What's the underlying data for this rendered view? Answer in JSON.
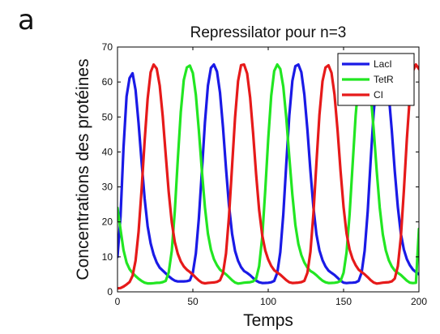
{
  "panel_label": "a",
  "chart_data": {
    "type": "line",
    "title": "Repressilator pour n=3",
    "xlabel": "Temps",
    "ylabel": "Concentrations des protéines",
    "xlim": [
      0,
      200
    ],
    "ylim": [
      0,
      70
    ],
    "xticks": [
      0,
      50,
      100,
      150,
      200
    ],
    "yticks": [
      0,
      10,
      20,
      30,
      40,
      50,
      60,
      70
    ],
    "grid": false,
    "legend_position": "top-right",
    "series": [
      {
        "name": "LacI",
        "color": "#1a1ae6",
        "x": [
          0,
          2,
          4,
          6,
          8,
          10,
          12,
          14,
          16,
          18,
          20,
          22,
          24,
          26,
          28,
          30,
          32,
          34,
          36,
          38,
          40,
          42,
          44,
          46,
          48,
          50,
          52,
          54,
          56,
          58,
          60,
          62,
          64,
          66,
          68,
          70,
          72,
          74,
          76,
          78,
          80,
          82,
          84,
          86,
          88,
          90,
          92,
          94,
          96,
          98,
          100,
          102,
          104,
          106,
          108,
          110,
          112,
          114,
          116,
          118,
          120,
          122,
          124,
          126,
          128,
          130,
          132,
          134,
          136,
          138,
          140,
          142,
          144,
          146,
          148,
          150,
          152,
          154,
          156,
          158,
          160,
          162,
          164,
          166,
          168,
          170,
          172,
          174,
          176,
          178,
          180,
          182,
          184,
          186,
          188,
          190,
          192,
          194,
          196,
          198,
          200
        ],
        "y": [
          10.0,
          21.36,
          41.13,
          55.89,
          61.13,
          62.5,
          57.71,
          48.23,
          36.97,
          26.65,
          18.76,
          13.85,
          10.67,
          8.38,
          6.91,
          6.1,
          5.29,
          4.48,
          3.73,
          3.19,
          2.97,
          2.98,
          3.0,
          3.05,
          3.29,
          5.5,
          10.98,
          21.0,
          34.7,
          48.42,
          58.95,
          64.02,
          65.0,
          62.97,
          56.97,
          47.06,
          35.35,
          24.71,
          16.61,
          11.68,
          8.87,
          7.08,
          5.95,
          5.4,
          4.75,
          3.94,
          3.2,
          2.73,
          2.52,
          2.56,
          2.6,
          2.74,
          3.14,
          5.45,
          11.32,
          22.11,
          36.52,
          50.38,
          60.3,
          64.5,
          65.0,
          62.8,
          56.41,
          46.29,
          34.57,
          24.13,
          16.45,
          11.86,
          9.06,
          7.25,
          6.07,
          5.43,
          4.81,
          4.01,
          3.2,
          2.63,
          2.51,
          2.59,
          2.61,
          2.72,
          3.12,
          5.53,
          11.72,
          23.0,
          37.79,
          51.4,
          60.56,
          64.16,
          64.7,
          62.56,
          56.33,
          46.15,
          34.47,
          24.17,
          16.63,
          12.1,
          9.34,
          7.61,
          6.34,
          5.66,
          5.0
        ]
      },
      {
        "name": "TetR",
        "color": "#22e622",
        "x": [
          0,
          2,
          4,
          6,
          8,
          10,
          12,
          14,
          16,
          18,
          20,
          22,
          24,
          26,
          28,
          30,
          32,
          34,
          36,
          38,
          40,
          42,
          44,
          46,
          48,
          50,
          52,
          54,
          56,
          58,
          60,
          62,
          64,
          66,
          68,
          70,
          72,
          74,
          76,
          78,
          80,
          82,
          84,
          86,
          88,
          90,
          92,
          94,
          96,
          98,
          100,
          102,
          104,
          106,
          108,
          110,
          112,
          114,
          116,
          118,
          120,
          122,
          124,
          126,
          128,
          130,
          132,
          134,
          136,
          138,
          140,
          142,
          144,
          146,
          148,
          150,
          152,
          154,
          156,
          158,
          160,
          162,
          164,
          166,
          168,
          170,
          172,
          174,
          176,
          178,
          180,
          182,
          184,
          186,
          188,
          190,
          192,
          194,
          196,
          198,
          200
        ],
        "y": [
          24.0,
          17.88,
          11.95,
          8.37,
          6.48,
          5.37,
          4.52,
          3.76,
          3.1,
          2.62,
          2.4,
          2.41,
          2.49,
          2.57,
          2.6,
          2.78,
          3.14,
          5.53,
          11.72,
          23.0,
          37.79,
          51.4,
          60.56,
          64.16,
          64.7,
          62.56,
          56.33,
          46.15,
          34.47,
          24.17,
          16.63,
          12.1,
          9.34,
          7.61,
          6.34,
          5.66,
          5.0,
          4.2,
          3.34,
          2.66,
          2.37,
          2.47,
          2.63,
          2.7,
          2.76,
          3.0,
          3.81,
          7.35,
          15.65,
          28.86,
          43.67,
          56.05,
          63.14,
          65.0,
          63.73,
          58.68,
          49.71,
          38.57,
          27.79,
          19.12,
          13.72,
          10.49,
          8.38,
          6.91,
          5.95,
          5.45,
          4.75,
          3.94,
          3.2,
          2.73,
          2.52,
          2.56,
          2.6,
          2.74,
          3.14,
          5.45,
          11.32,
          22.11,
          36.52,
          50.38,
          60.3,
          64.5,
          65.0,
          62.8,
          56.41,
          46.29,
          34.57,
          24.13,
          16.45,
          11.86,
          9.06,
          7.25,
          6.07,
          5.43,
          4.81,
          4.01,
          3.2,
          2.63,
          2.51,
          2.59,
          18.0
        ]
      },
      {
        "name": "CI",
        "color": "#e61a1a",
        "x": [
          0,
          2,
          4,
          6,
          8,
          10,
          12,
          14,
          16,
          18,
          20,
          22,
          24,
          26,
          28,
          30,
          32,
          34,
          36,
          38,
          40,
          42,
          44,
          46,
          48,
          50,
          52,
          54,
          56,
          58,
          60,
          62,
          64,
          66,
          68,
          70,
          72,
          74,
          76,
          78,
          80,
          82,
          84,
          86,
          88,
          90,
          92,
          94,
          96,
          98,
          100,
          102,
          104,
          106,
          108,
          110,
          112,
          114,
          116,
          118,
          120,
          122,
          124,
          126,
          128,
          130,
          132,
          134,
          136,
          138,
          140,
          142,
          144,
          146,
          148,
          150,
          152,
          154,
          156,
          158,
          160,
          162,
          164,
          166,
          168,
          170,
          172,
          174,
          176,
          178,
          180,
          182,
          184,
          186,
          188,
          190,
          192,
          194,
          196,
          198,
          200
        ],
        "y": [
          1.0,
          1.1,
          1.5,
          2.1,
          2.8,
          4.6,
          8.9,
          17.14,
          29.44,
          43.17,
          55.22,
          62.79,
          65.0,
          63.83,
          58.99,
          50.25,
          39.27,
          28.56,
          19.84,
          14.25,
          10.89,
          8.72,
          7.28,
          6.32,
          5.67,
          4.91,
          4.06,
          3.24,
          2.63,
          2.43,
          2.54,
          2.61,
          2.69,
          2.85,
          3.32,
          5.34,
          10.95,
          21.59,
          35.87,
          49.86,
          60.26,
          64.81,
          65.0,
          62.44,
          55.57,
          45.23,
          33.57,
          23.41,
          16.2,
          11.9,
          9.24,
          7.42,
          6.18,
          5.51,
          4.91,
          4.13,
          3.33,
          2.74,
          2.52,
          2.57,
          2.64,
          2.78,
          3.15,
          5.46,
          11.45,
          22.39,
          36.82,
          50.58,
          60.23,
          64.13,
          64.76,
          62.62,
          56.43,
          46.19,
          34.5,
          24.21,
          16.66,
          12.12,
          9.37,
          7.62,
          6.36,
          5.66,
          5.0,
          4.2,
          3.34,
          2.66,
          2.37,
          2.47,
          2.63,
          2.7,
          2.76,
          3.0,
          3.81,
          7.35,
          15.65,
          28.86,
          43.67,
          56.05,
          63.14,
          65.0,
          63.73
        ]
      }
    ]
  }
}
